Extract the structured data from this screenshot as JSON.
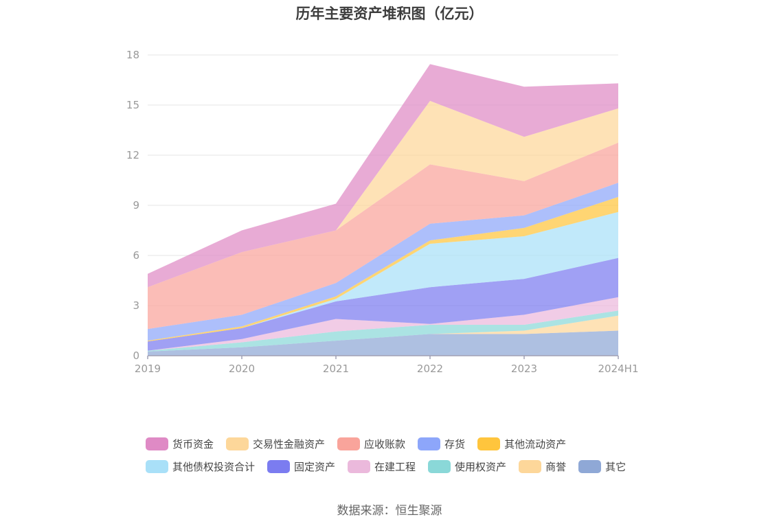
{
  "chart_data": {
    "type": "area",
    "stacked": true,
    "title": "历年主要资产堆积图（亿元）",
    "categories": [
      "2019",
      "2020",
      "2021",
      "2022",
      "2023",
      "2024H1"
    ],
    "y_ticks": [
      "0",
      "3",
      "6",
      "9",
      "12",
      "15",
      "18"
    ],
    "ylim": [
      0,
      18
    ],
    "grid": true,
    "legend_position": "bottom",
    "series": [
      {
        "name": "其它",
        "color": "#8fa8d6",
        "values": [
          0.25,
          0.5,
          0.9,
          1.3,
          1.3,
          1.5
        ]
      },
      {
        "name": "商誉",
        "color": "#fdd79a",
        "values": [
          0.0,
          0.0,
          0.0,
          0.0,
          0.2,
          0.9
        ]
      },
      {
        "name": "使用权资产",
        "color": "#8ad8d8",
        "values": [
          0.05,
          0.3,
          0.55,
          0.55,
          0.35,
          0.3
        ]
      },
      {
        "name": "在建工程",
        "color": "#ebb9dc",
        "values": [
          0.0,
          0.2,
          0.75,
          0.05,
          0.6,
          0.8
        ]
      },
      {
        "name": "固定资产",
        "color": "#7b7cf0",
        "values": [
          0.55,
          0.65,
          1.05,
          2.2,
          2.15,
          2.35
        ]
      },
      {
        "name": "其他债权投资合计",
        "color": "#a9e0f8",
        "values": [
          0.0,
          0.0,
          0.15,
          2.6,
          2.55,
          2.75
        ]
      },
      {
        "name": "其他流动资产",
        "color": "#ffc53d",
        "values": [
          0.05,
          0.1,
          0.15,
          0.2,
          0.5,
          0.9
        ]
      },
      {
        "name": "存货",
        "color": "#8da6fa",
        "values": [
          0.7,
          0.7,
          0.8,
          1.0,
          0.75,
          0.85
        ]
      },
      {
        "name": "应收账款",
        "color": "#f9a49b",
        "values": [
          2.5,
          3.75,
          3.15,
          3.55,
          2.05,
          2.4
        ]
      },
      {
        "name": "交易性金融资产",
        "color": "#fdd79a",
        "values": [
          0.0,
          0.0,
          0.0,
          3.8,
          2.65,
          2.05
        ]
      },
      {
        "name": "货币资金",
        "color": "#df8ac5",
        "values": [
          0.8,
          1.3,
          1.6,
          2.2,
          3.0,
          1.5
        ]
      }
    ]
  },
  "legend": {
    "row1": [
      "货币资金",
      "交易性金融资产",
      "应收账款",
      "存货",
      "其他流动资产"
    ],
    "row2": [
      "其他债权投资合计",
      "固定资产",
      "在建工程",
      "使用权资产",
      "商誉",
      "其它"
    ]
  },
  "source": "数据来源：恒生聚源"
}
